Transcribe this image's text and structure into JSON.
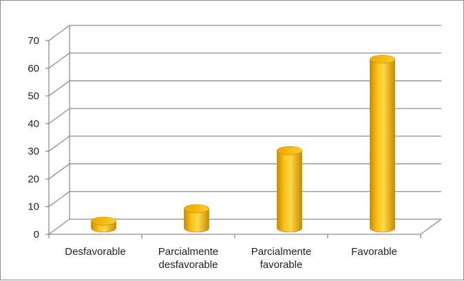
{
  "chart_data": {
    "type": "bar",
    "style": "3d-cylinder",
    "categories": [
      [
        "Desfavorable"
      ],
      [
        "Parcialmente",
        "desfavorable"
      ],
      [
        "Parcialmente",
        "favorable"
      ],
      [
        "Favorable"
      ]
    ],
    "values": [
      2.5,
      7,
      28,
      61
    ],
    "ylim": [
      0,
      70
    ],
    "yticks": [
      "0",
      "10",
      "20",
      "30",
      "40",
      "50",
      "60",
      "70"
    ],
    "grid": true,
    "legend": "none",
    "title": "",
    "xlabel": "",
    "ylabel": "",
    "colors": {
      "bar_body": "#f5b400",
      "bar_light": "#ffd84a",
      "bar_dark": "#c98a00",
      "bar_top": "#ffc21a",
      "grid": "#8c8c8c"
    }
  }
}
